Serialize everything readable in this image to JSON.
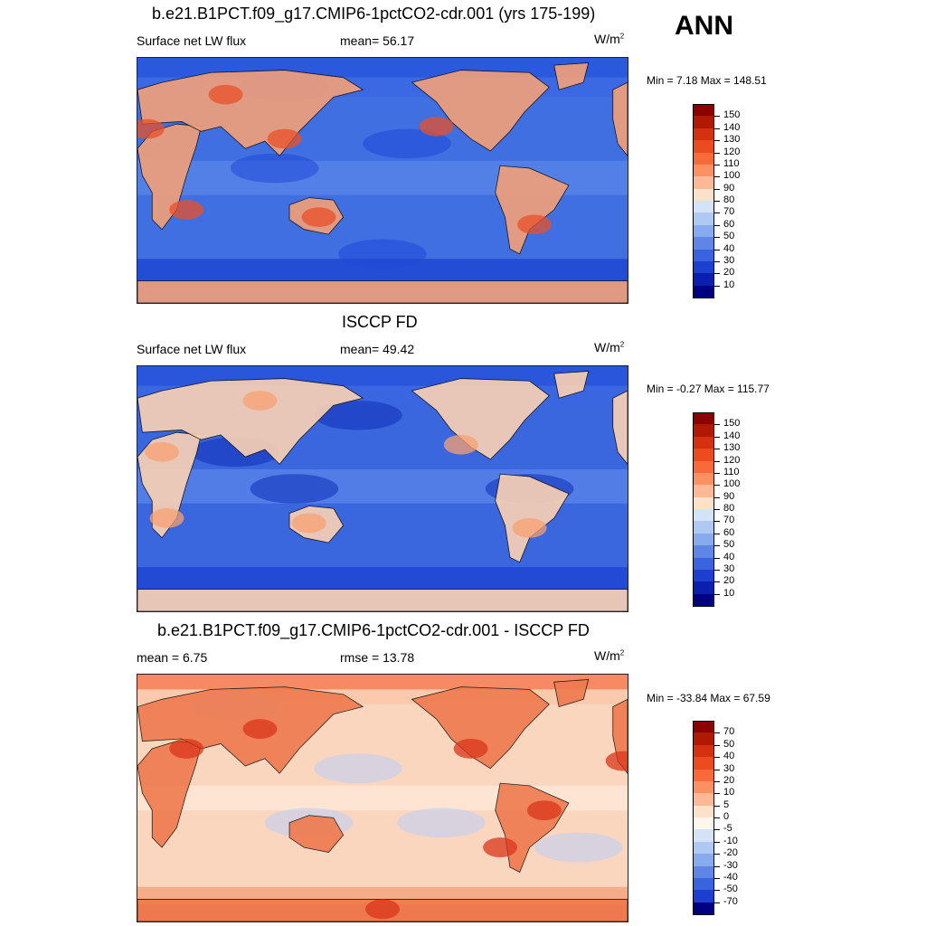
{
  "season": "ANN",
  "panels": [
    {
      "title": "b.e21.B1PCT.f09_g17.CMIP6-1pctCO2-cdr.001 (yrs 175-199)",
      "left_label": "Surface net LW flux",
      "center_label": "mean=  56.17",
      "units": "W/m",
      "units_sup": "2",
      "minmax": "Min =   7.18 Max = 148.51",
      "colorbar": {
        "labels": [
          "150",
          "140",
          "130",
          "120",
          "110",
          "100",
          "90",
          "80",
          "70",
          "60",
          "50",
          "40",
          "30",
          "20",
          "10"
        ],
        "colors": [
          "#8b0000",
          "#b01a05",
          "#d5300f",
          "#ec4a1f",
          "#f86a3a",
          "#fb9162",
          "#fdb896",
          "#fde2cb",
          "#d4e3f7",
          "#afc9f3",
          "#88aaee",
          "#5f86e6",
          "#3a63e0",
          "#1c3fcf",
          "#0a1fae",
          "#000080"
        ]
      },
      "palette": {
        "ocean": "#3f6fe0",
        "land": "#f3a07a",
        "hot": "#e8502a",
        "cool": "#1f48d8"
      }
    },
    {
      "title": "ISCCP FD",
      "left_label": "Surface net LW flux",
      "center_label": "mean=  49.42",
      "units": "W/m",
      "units_sup": "2",
      "minmax": "Min =  -0.27 Max = 115.77",
      "colorbar": {
        "labels": [
          "150",
          "140",
          "130",
          "120",
          "110",
          "100",
          "90",
          "80",
          "70",
          "60",
          "50",
          "40",
          "30",
          "20",
          "10"
        ],
        "colors": [
          "#8b0000",
          "#b01a05",
          "#d5300f",
          "#ec4a1f",
          "#f86a3a",
          "#fb9162",
          "#fdb896",
          "#fde2cb",
          "#d4e3f7",
          "#afc9f3",
          "#88aaee",
          "#5f86e6",
          "#3a63e0",
          "#1c3fcf",
          "#0a1fae",
          "#000080"
        ]
      },
      "palette": {
        "ocean": "#3a66de",
        "land": "#fbd2b4",
        "hot": "#f8a070",
        "cool": "#0f2fb8"
      }
    },
    {
      "title": "b.e21.B1PCT.f09_g17.CMIP6-1pctCO2-cdr.001 - ISCCP FD",
      "left_label": "mean =   6.75",
      "center_label": "rmse =  13.78",
      "units": "W/m",
      "units_sup": "2",
      "minmax": "Min = -33.84 Max =  67.59",
      "colorbar": {
        "labels": [
          "70",
          "50",
          "40",
          "30",
          "20",
          "10",
          "5",
          "0",
          "-5",
          "-10",
          "-20",
          "-30",
          "-40",
          "-50",
          "-70"
        ],
        "colors": [
          "#8b0000",
          "#b01a05",
          "#d5300f",
          "#ec4a1f",
          "#f86a3a",
          "#fb9162",
          "#fdb896",
          "#fde2cb",
          "#fff6ee",
          "#d4e3f7",
          "#afc9f3",
          "#88aaee",
          "#5f86e6",
          "#3a63e0",
          "#1c3fcf",
          "#000080"
        ]
      },
      "palette": {
        "ocean": "#fbd6bf",
        "land": "#ef7a4e",
        "hot": "#d9361a",
        "cool": "#b9d0f5"
      }
    }
  ],
  "chart_data": [
    {
      "type": "heatmap",
      "title": "b.e21.B1PCT.f09_g17.CMIP6-1pctCO2-cdr.001 (yrs 175-199)",
      "variable": "Surface net LW flux",
      "units": "W/m2",
      "mean": 56.17,
      "min": 7.18,
      "max": 148.51,
      "colorbar_levels": [
        10,
        20,
        30,
        40,
        50,
        60,
        70,
        80,
        90,
        100,
        110,
        120,
        130,
        140,
        150
      ]
    },
    {
      "type": "heatmap",
      "title": "ISCCP FD",
      "variable": "Surface net LW flux",
      "units": "W/m2",
      "mean": 49.42,
      "min": -0.27,
      "max": 115.77,
      "colorbar_levels": [
        10,
        20,
        30,
        40,
        50,
        60,
        70,
        80,
        90,
        100,
        110,
        120,
        130,
        140,
        150
      ]
    },
    {
      "type": "heatmap",
      "title": "b.e21.B1PCT.f09_g17.CMIP6-1pctCO2-cdr.001 - ISCCP FD",
      "units": "W/m2",
      "mean": 6.75,
      "rmse": 13.78,
      "min": -33.84,
      "max": 67.59,
      "colorbar_levels": [
        -70,
        -50,
        -40,
        -30,
        -20,
        -10,
        -5,
        0,
        5,
        10,
        20,
        30,
        40,
        50,
        70
      ]
    }
  ]
}
